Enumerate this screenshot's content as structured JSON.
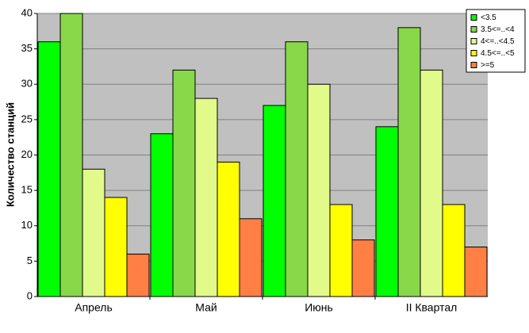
{
  "chart_data": {
    "type": "bar",
    "y_label": "Количество станций",
    "categories": [
      "Апрель",
      "Май",
      "Июнь",
      "II Квартал"
    ],
    "series": [
      {
        "name": "<3.5",
        "color": "#00ff00",
        "values": [
          36,
          23,
          27,
          24
        ]
      },
      {
        "name": "3.5<=..<4",
        "color": "#88d84a",
        "values": [
          40,
          32,
          36,
          38
        ]
      },
      {
        "name": "4<=..<4.5",
        "color": "#e2fa8a",
        "values": [
          18,
          28,
          30,
          32
        ]
      },
      {
        "name": "4.5<=..<5",
        "color": "#ffff00",
        "values": [
          14,
          19,
          13,
          13
        ]
      },
      {
        "name": ">=5",
        "color": "#ff7f45",
        "values": [
          6,
          11,
          8,
          7
        ]
      }
    ],
    "ylim": [
      0,
      40
    ],
    "yticks": [
      0,
      5,
      10,
      15,
      20,
      25,
      30,
      35,
      40
    ],
    "grid": true
  }
}
